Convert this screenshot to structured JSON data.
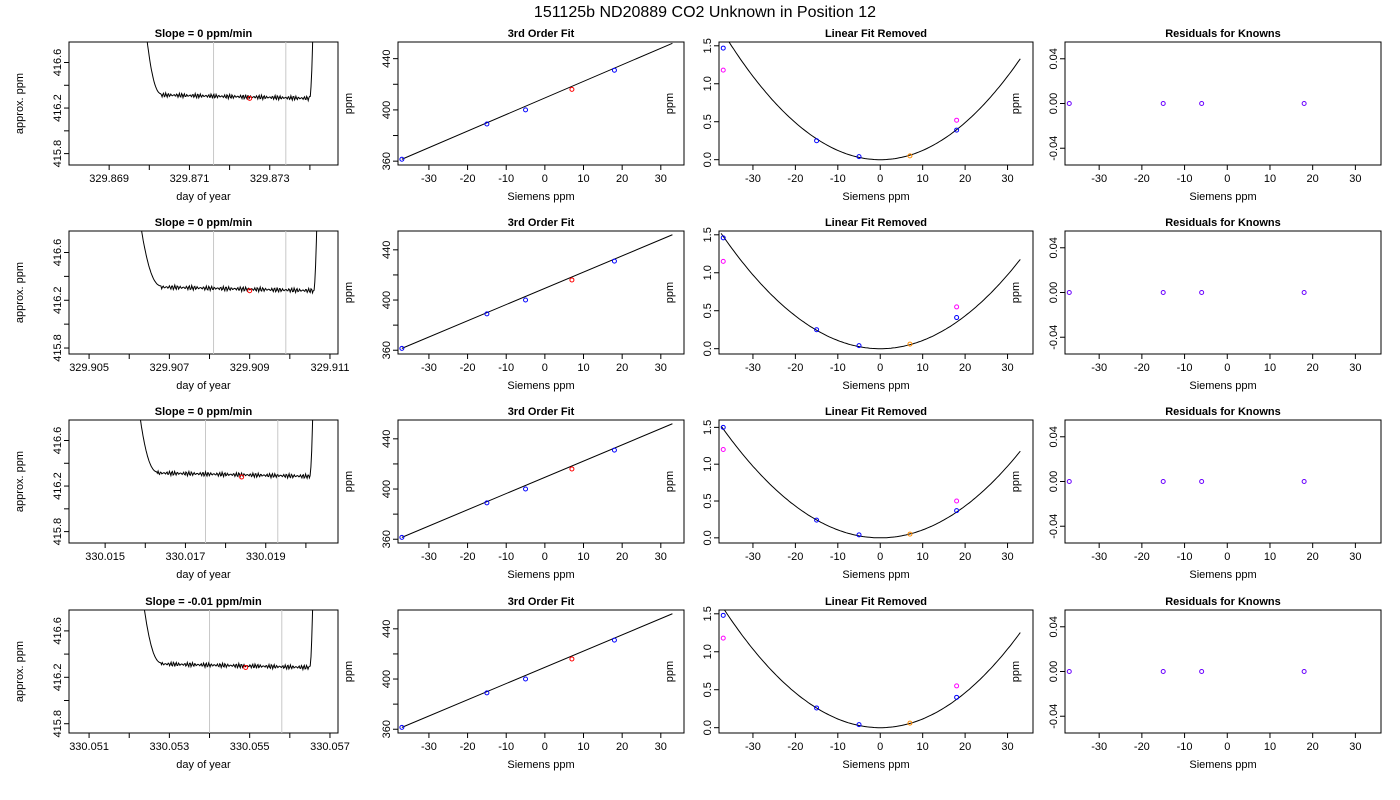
{
  "figure": {
    "title": "151125b     ND20889    CO2 Unknown in Position  12"
  },
  "colors": {
    "line": "#000000",
    "frame": "#000000",
    "marker_lines": "#c8c8c8",
    "known": "#0000ff",
    "unknown": "#ff0000",
    "fit_orange": "#ff8c00",
    "magenta": "#ff00ff",
    "purple": "#6a00ff"
  },
  "chart_data": [
    {
      "type": "line",
      "row": 0,
      "col": 0,
      "title": "Slope =  0  ppm/min",
      "xlabel": "day of year",
      "ylabel": "approx. ppm",
      "xlim": [
        329.868,
        329.8747
      ],
      "ylim": [
        415.7,
        416.78
      ],
      "xticks": [
        329.869,
        329.871,
        329.873
      ],
      "xminor": [
        329.87,
        329.872,
        329.874
      ],
      "yticks": [
        415.8,
        416.2,
        416.6
      ],
      "yminor": [
        416.0,
        416.4
      ],
      "vlines": [
        329.8716,
        329.8734
      ],
      "trace_start": 329.8698,
      "trace_end": 329.8741,
      "plateau": [
        329.8703,
        329.874
      ],
      "level": 416.285,
      "point": {
        "x": 329.8725,
        "y": 416.285
      }
    },
    {
      "type": "line",
      "row": 0,
      "col": 1,
      "title": "3rd Order Fit",
      "xlabel": "Siemens ppm",
      "ylabel": "ppm",
      "xlim": [
        -38,
        36
      ],
      "ylim": [
        357,
        453
      ],
      "xticks": [
        -30,
        -20,
        -10,
        0,
        10,
        20,
        30
      ],
      "yticks": [
        360,
        400,
        440
      ],
      "yminor": [
        380,
        420
      ],
      "fit_line": [
        [
          -37,
          361.5
        ],
        [
          33,
          452
        ]
      ],
      "known_points": [
        [
          -37,
          361.5
        ],
        [
          -15,
          389
        ],
        [
          -5,
          400
        ],
        [
          18,
          431
        ]
      ],
      "unknown_points": [
        [
          7,
          416
        ]
      ]
    },
    {
      "type": "scatter",
      "row": 0,
      "col": 2,
      "title": "Linear Fit Removed",
      "xlabel": "Siemens ppm",
      "ylabel": "ppm",
      "xlim": [
        -38,
        36
      ],
      "ylim": [
        -0.07,
        1.55
      ],
      "xticks": [
        -30,
        -20,
        -10,
        0,
        10,
        20,
        30
      ],
      "yticks": [
        0.0,
        0.5,
        1.0,
        1.5
      ],
      "curve_coef": 0.00122,
      "curve_xmax": 33,
      "known_points": [
        [
          -37,
          1.47
        ],
        [
          -15,
          0.25
        ],
        [
          -5,
          0.04
        ],
        [
          18,
          0.39
        ]
      ],
      "magenta_points": [
        [
          -37,
          1.18
        ],
        [
          18,
          0.52
        ]
      ],
      "unknown_points": [
        [
          7,
          0.05
        ]
      ]
    },
    {
      "type": "scatter",
      "row": 0,
      "col": 3,
      "title": "Residuals for Knowns",
      "xlabel": "Siemens ppm",
      "ylabel": "ppm",
      "xlim": [
        -38,
        36
      ],
      "ylim": [
        -0.055,
        0.055
      ],
      "xticks": [
        -30,
        -20,
        -10,
        0,
        10,
        20,
        30
      ],
      "yticks": [
        -0.04,
        0.0,
        0.04
      ],
      "points": [
        [
          -37,
          0
        ],
        [
          -15,
          0
        ],
        [
          -6,
          0
        ],
        [
          18,
          0
        ]
      ]
    },
    {
      "type": "line",
      "row": 1,
      "col": 0,
      "title": "Slope =  0  ppm/min",
      "xlabel": "day of year",
      "ylabel": "approx. ppm",
      "xlim": [
        329.9045,
        329.9112
      ],
      "ylim": [
        415.75,
        416.78
      ],
      "xticks": [
        329.905,
        329.907,
        329.909,
        329.911
      ],
      "xminor": [
        329.906,
        329.908,
        329.91
      ],
      "yticks": [
        415.8,
        416.2,
        416.6
      ],
      "yminor": [
        416.0,
        416.4
      ],
      "vlines": [
        329.9081,
        329.9099
      ],
      "trace_start": 329.9061,
      "trace_end": 329.9107,
      "plateau": [
        329.9068,
        329.9106
      ],
      "level": 416.28,
      "point": {
        "x": 329.909,
        "y": 416.28
      }
    },
    {
      "type": "line",
      "row": 1,
      "col": 1,
      "title": "3rd Order Fit",
      "xlabel": "Siemens ppm",
      "ylabel": "ppm",
      "xlim": [
        -38,
        36
      ],
      "ylim": [
        357,
        455
      ],
      "xticks": [
        -30,
        -20,
        -10,
        0,
        10,
        20,
        30
      ],
      "yticks": [
        360,
        400,
        440
      ],
      "yminor": [
        380,
        420
      ],
      "fit_line": [
        [
          -37,
          361.5
        ],
        [
          33,
          452
        ]
      ],
      "known_points": [
        [
          -37,
          361.5
        ],
        [
          -15,
          389
        ],
        [
          -5,
          400
        ],
        [
          18,
          431
        ]
      ],
      "unknown_points": [
        [
          7,
          416
        ]
      ]
    },
    {
      "type": "scatter",
      "row": 1,
      "col": 2,
      "title": "Linear Fit Removed",
      "xlabel": "Siemens ppm",
      "ylabel": "ppm",
      "xlim": [
        -38,
        36
      ],
      "ylim": [
        -0.07,
        1.55
      ],
      "xticks": [
        -30,
        -20,
        -10,
        0,
        10,
        20,
        30
      ],
      "yticks": [
        0.0,
        0.5,
        1.0,
        1.5
      ],
      "curve_coef": 0.00108,
      "curve_xmax": 33,
      "known_points": [
        [
          -37,
          1.46
        ],
        [
          -15,
          0.25
        ],
        [
          -5,
          0.04
        ],
        [
          18,
          0.41
        ]
      ],
      "magenta_points": [
        [
          -37,
          1.15
        ],
        [
          18,
          0.55
        ]
      ],
      "unknown_points": [
        [
          7,
          0.06
        ]
      ]
    },
    {
      "type": "scatter",
      "row": 1,
      "col": 3,
      "title": "Residuals for Knowns",
      "xlabel": "Siemens ppm",
      "ylabel": "ppm",
      "xlim": [
        -38,
        36
      ],
      "ylim": [
        -0.055,
        0.055
      ],
      "xticks": [
        -30,
        -20,
        -10,
        0,
        10,
        20,
        30
      ],
      "yticks": [
        -0.04,
        0.0,
        0.04
      ],
      "points": [
        [
          -37,
          0
        ],
        [
          -15,
          0
        ],
        [
          -6,
          0
        ],
        [
          18,
          0
        ]
      ]
    },
    {
      "type": "line",
      "row": 2,
      "col": 0,
      "title": "Slope =  0  ppm/min",
      "xlabel": "day of year",
      "ylabel": "approx. ppm",
      "xlim": [
        330.0141,
        330.0208
      ],
      "ylim": [
        415.7,
        416.78
      ],
      "xticks": [
        330.015,
        330.017,
        330.019
      ],
      "xminor": [
        330.016,
        330.018,
        330.02
      ],
      "yticks": [
        415.8,
        416.2,
        416.6
      ],
      "yminor": [
        416.0,
        416.4
      ],
      "vlines": [
        330.0175,
        330.0193
      ],
      "trace_start": 330.0157,
      "trace_end": 330.0202,
      "plateau": [
        330.0163,
        330.0201
      ],
      "level": 416.285,
      "point": {
        "x": 330.0184,
        "y": 416.28
      }
    },
    {
      "type": "line",
      "row": 2,
      "col": 1,
      "title": "3rd Order Fit",
      "xlabel": "Siemens ppm",
      "ylabel": "ppm",
      "xlim": [
        -38,
        36
      ],
      "ylim": [
        357,
        455
      ],
      "xticks": [
        -30,
        -20,
        -10,
        0,
        10,
        20,
        30
      ],
      "yticks": [
        360,
        400,
        440
      ],
      "yminor": [
        380,
        420
      ],
      "fit_line": [
        [
          -37,
          361.5
        ],
        [
          33,
          452
        ]
      ],
      "known_points": [
        [
          -37,
          361.5
        ],
        [
          -15,
          389
        ],
        [
          -5,
          400
        ],
        [
          18,
          431
        ]
      ],
      "unknown_points": [
        [
          7,
          416
        ]
      ]
    },
    {
      "type": "scatter",
      "row": 2,
      "col": 2,
      "title": "Linear Fit Removed",
      "xlabel": "Siemens ppm",
      "ylabel": "ppm",
      "xlim": [
        -38,
        36
      ],
      "ylim": [
        -0.07,
        1.6
      ],
      "xticks": [
        -30,
        -20,
        -10,
        0,
        10,
        20,
        30
      ],
      "yticks": [
        0.0,
        0.5,
        1.0,
        1.5
      ],
      "curve_coef": 0.00108,
      "curve_xmax": 33,
      "known_points": [
        [
          -37,
          1.5
        ],
        [
          -15,
          0.24
        ],
        [
          -5,
          0.04
        ],
        [
          18,
          0.37
        ]
      ],
      "magenta_points": [
        [
          -37,
          1.2
        ],
        [
          18,
          0.5
        ]
      ],
      "unknown_points": [
        [
          7,
          0.05
        ]
      ]
    },
    {
      "type": "scatter",
      "row": 2,
      "col": 3,
      "title": "Residuals for Knowns",
      "xlabel": "Siemens ppm",
      "ylabel": "ppm",
      "xlim": [
        -38,
        36
      ],
      "ylim": [
        -0.055,
        0.055
      ],
      "xticks": [
        -30,
        -20,
        -10,
        0,
        10,
        20,
        30
      ],
      "yticks": [
        -0.04,
        0.0,
        0.04
      ],
      "points": [
        [
          -37,
          0
        ],
        [
          -15,
          0
        ],
        [
          -6,
          0
        ],
        [
          18,
          0
        ]
      ]
    },
    {
      "type": "line",
      "row": 3,
      "col": 0,
      "title": "Slope =  -0.01  ppm/min",
      "xlabel": "day of year",
      "ylabel": "approx. ppm",
      "xlim": [
        330.0505,
        330.0572
      ],
      "ylim": [
        415.72,
        416.78
      ],
      "xticks": [
        330.051,
        330.053,
        330.055,
        330.057
      ],
      "xminor": [
        330.052,
        330.054,
        330.056
      ],
      "yticks": [
        415.8,
        416.2,
        416.6
      ],
      "yminor": [
        416.0,
        416.4
      ],
      "vlines": [
        330.054,
        330.0558
      ],
      "trace_start": 330.0522,
      "trace_end": 330.0566,
      "plateau": [
        330.0528,
        330.0565
      ],
      "level": 416.285,
      "point": {
        "x": 330.0549,
        "y": 416.285
      }
    },
    {
      "type": "line",
      "row": 3,
      "col": 1,
      "title": "3rd Order Fit",
      "xlabel": "Siemens ppm",
      "ylabel": "ppm",
      "xlim": [
        -38,
        36
      ],
      "ylim": [
        357,
        455
      ],
      "xticks": [
        -30,
        -20,
        -10,
        0,
        10,
        20,
        30
      ],
      "yticks": [
        360,
        400,
        440
      ],
      "yminor": [
        380,
        420
      ],
      "fit_line": [
        [
          -37,
          361.5
        ],
        [
          33,
          452
        ]
      ],
      "known_points": [
        [
          -37,
          361.5
        ],
        [
          -15,
          389
        ],
        [
          -5,
          400
        ],
        [
          18,
          431
        ]
      ],
      "unknown_points": [
        [
          7,
          416
        ]
      ]
    },
    {
      "type": "scatter",
      "row": 3,
      "col": 2,
      "title": "Linear Fit Removed",
      "xlabel": "Siemens ppm",
      "ylabel": "ppm",
      "xlim": [
        -38,
        36
      ],
      "ylim": [
        -0.07,
        1.55
      ],
      "xticks": [
        -30,
        -20,
        -10,
        0,
        10,
        20,
        30
      ],
      "yticks": [
        0.0,
        0.5,
        1.0,
        1.5
      ],
      "curve_coef": 0.00115,
      "curve_xmax": 33,
      "known_points": [
        [
          -37,
          1.48
        ],
        [
          -15,
          0.26
        ],
        [
          -5,
          0.04
        ],
        [
          18,
          0.4
        ]
      ],
      "magenta_points": [
        [
          -37,
          1.18
        ],
        [
          18,
          0.55
        ]
      ],
      "unknown_points": [
        [
          7,
          0.06
        ]
      ]
    },
    {
      "type": "scatter",
      "row": 3,
      "col": 3,
      "title": "Residuals for Knowns",
      "xlabel": "Siemens ppm",
      "ylabel": "ppm",
      "xlim": [
        -38,
        36
      ],
      "ylim": [
        -0.055,
        0.055
      ],
      "xticks": [
        -30,
        -20,
        -10,
        0,
        10,
        20,
        30
      ],
      "yticks": [
        -0.04,
        0.0,
        0.04
      ],
      "points": [
        [
          -37,
          0
        ],
        [
          -15,
          0
        ],
        [
          -6,
          0
        ],
        [
          18,
          0
        ]
      ]
    }
  ]
}
